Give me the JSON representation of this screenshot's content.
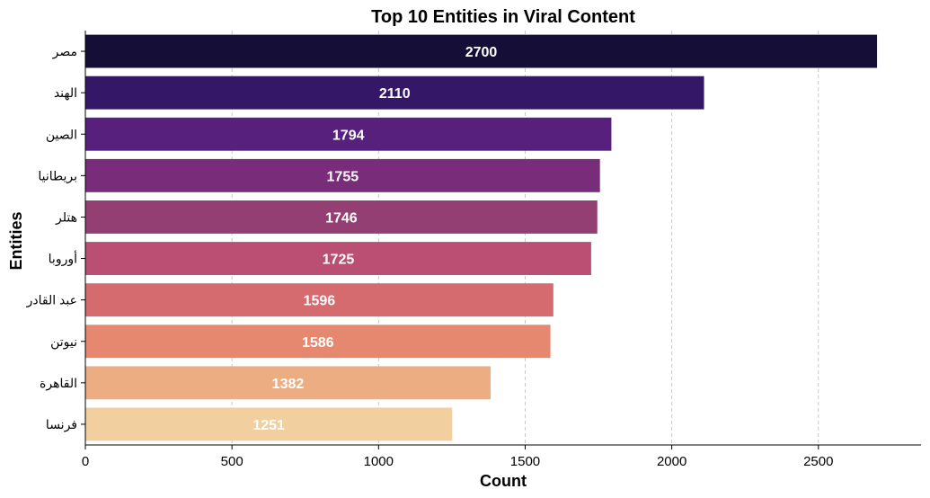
{
  "chart_data": {
    "type": "bar",
    "orientation": "horizontal",
    "title": "Top 10 Entities in Viral Content",
    "xlabel": "Count",
    "ylabel": "Entities",
    "categories": [
      "مصر",
      "الهند",
      "الصين",
      "بريطانيا",
      "هتلر",
      "أوروبا",
      "عبد القادر",
      "نيوتن",
      "القاهرة",
      "فرنسا"
    ],
    "values": [
      2700,
      2110,
      1794,
      1755,
      1746,
      1725,
      1596,
      1586,
      1382,
      1251
    ],
    "xlim": [
      0,
      2850
    ],
    "xticks": [
      0,
      500,
      1000,
      1500,
      2000,
      2500
    ],
    "grid": "x-dashed",
    "colors": [
      "#150e37",
      "#341867",
      "#56207c",
      "#782c79",
      "#943f74",
      "#ba4f73",
      "#d56a6f",
      "#e5886f",
      "#edad82",
      "#f1cf9e"
    ]
  }
}
